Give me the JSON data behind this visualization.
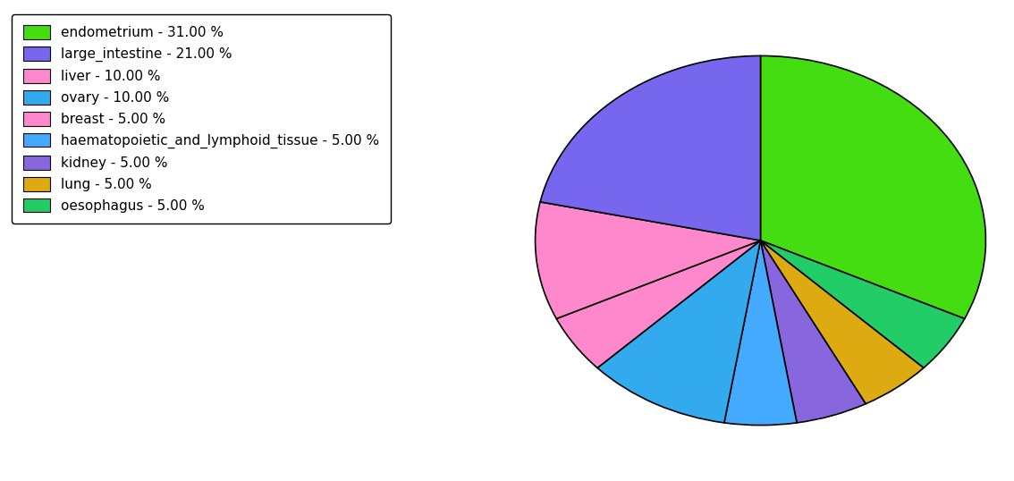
{
  "labels": [
    "endometrium - 31.00 %",
    "large_intestine - 21.00 %",
    "liver - 10.00 %",
    "ovary - 10.00 %",
    "breast - 5.00 %",
    "haematopoietic_and_lymphoid_tissue - 5.00 %",
    "kidney - 5.00 %",
    "lung - 5.00 %",
    "oesophagus - 5.00 %"
  ],
  "values": [
    31,
    21,
    10,
    10,
    5,
    5,
    5,
    5,
    5
  ],
  "colors": [
    "#44dd11",
    "#7766ee",
    "#ff88cc",
    "#33aaee",
    "#ff88cc",
    "#44aaff",
    "#8866dd",
    "#ddaa11",
    "#22cc66"
  ],
  "startangle": 90,
  "figsize": [
    11.34,
    5.38
  ],
  "dpi": 100
}
